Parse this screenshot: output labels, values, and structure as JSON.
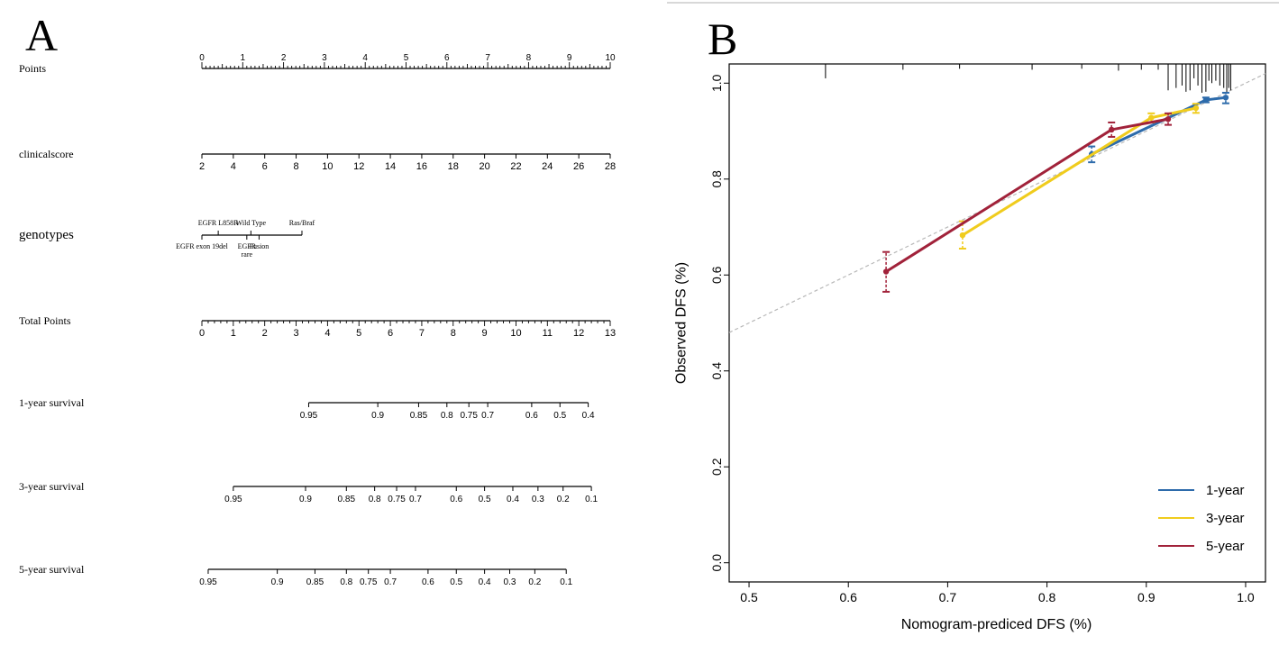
{
  "panel_a": {
    "letter": "A",
    "rows": [
      {
        "label": "Points"
      },
      {
        "label": "clinicalscore"
      },
      {
        "label": "genotypes"
      },
      {
        "label": "Total Points"
      },
      {
        "label": "1-year survival"
      },
      {
        "label": "3-year survival"
      },
      {
        "label": "5-year survival"
      }
    ]
  },
  "panel_b": {
    "letter": "B"
  },
  "chart_data": [
    {
      "type": "nomogram",
      "scales": [
        {
          "name": "Points",
          "min": 0,
          "max": 10,
          "major_ticks": [
            0,
            1,
            2,
            3,
            4,
            5,
            6,
            7,
            8,
            9,
            10
          ],
          "minor_step": 0.1
        },
        {
          "name": "clinicalscore",
          "min": 2,
          "max": 28,
          "ticks": [
            2,
            4,
            6,
            8,
            10,
            12,
            14,
            16,
            18,
            20,
            22,
            24,
            26,
            28
          ],
          "points_at_min": 0,
          "points_at_max": 10
        },
        {
          "name": "genotypes",
          "categories": [
            {
              "label": "EGFR exon 19del",
              "points": 0,
              "label_side": "below"
            },
            {
              "label": "EGFR L858R",
              "points": 0.4,
              "label_side": "above"
            },
            {
              "label": "EGFR rare",
              "points": 1.1,
              "label_side": "below"
            },
            {
              "label": "Wild Type",
              "points": 1.2,
              "label_side": "above"
            },
            {
              "label": "Fusion",
              "points": 1.4,
              "label_side": "below"
            },
            {
              "label": "Ras/Braf",
              "points": 2.45,
              "label_side": "above"
            }
          ]
        },
        {
          "name": "Total Points",
          "min": 0,
          "max": 13,
          "major_ticks": [
            0,
            1,
            2,
            3,
            4,
            5,
            6,
            7,
            8,
            9,
            10,
            11,
            12,
            13
          ],
          "minor_step": 0.2
        },
        {
          "name": "1-year survival",
          "ticks": [
            {
              "label": "0.95",
              "total_points": 3.4
            },
            {
              "label": "0.9",
              "total_points": 5.6
            },
            {
              "label": "0.85",
              "total_points": 6.9
            },
            {
              "label": "0.8",
              "total_points": 7.8
            },
            {
              "label": "0.75",
              "total_points": 8.5
            },
            {
              "label": "0.7",
              "total_points": 9.1
            },
            {
              "label": "0.6",
              "total_points": 10.5
            },
            {
              "label": "0.5",
              "total_points": 11.4
            },
            {
              "label": "0.4",
              "total_points": 12.3
            }
          ]
        },
        {
          "name": "3-year survival",
          "ticks": [
            {
              "label": "0.95",
              "total_points": 1.0
            },
            {
              "label": "0.9",
              "total_points": 3.3
            },
            {
              "label": "0.85",
              "total_points": 4.6
            },
            {
              "label": "0.8",
              "total_points": 5.5
            },
            {
              "label": "0.75",
              "total_points": 6.2
            },
            {
              "label": "0.7",
              "total_points": 6.8
            },
            {
              "label": "0.6",
              "total_points": 8.1
            },
            {
              "label": "0.5",
              "total_points": 9.0
            },
            {
              "label": "0.4",
              "total_points": 9.9
            },
            {
              "label": "0.3",
              "total_points": 10.7
            },
            {
              "label": "0.2",
              "total_points": 11.5
            },
            {
              "label": "0.1",
              "total_points": 12.4
            }
          ]
        },
        {
          "name": "5-year survival",
          "ticks": [
            {
              "label": "0.95",
              "total_points": 0.2
            },
            {
              "label": "0.9",
              "total_points": 2.4
            },
            {
              "label": "0.85",
              "total_points": 3.6
            },
            {
              "label": "0.8",
              "total_points": 4.6
            },
            {
              "label": "0.75",
              "total_points": 5.3
            },
            {
              "label": "0.7",
              "total_points": 6.0
            },
            {
              "label": "0.6",
              "total_points": 7.2
            },
            {
              "label": "0.5",
              "total_points": 8.1
            },
            {
              "label": "0.4",
              "total_points": 9.0
            },
            {
              "label": "0.3",
              "total_points": 9.8
            },
            {
              "label": "0.2",
              "total_points": 10.6
            },
            {
              "label": "0.1",
              "total_points": 11.6
            }
          ]
        }
      ]
    },
    {
      "type": "line",
      "xlabel": "Nomogram-prediced DFS (%)",
      "ylabel": "Observed DFS (%)",
      "xlim": [
        0.48,
        1.02
      ],
      "ylim": [
        -0.04,
        1.04
      ],
      "xticks": [
        0.5,
        0.6,
        0.7,
        0.8,
        0.9,
        1.0
      ],
      "xtick_labels": [
        "0.5",
        "0.6",
        "0.7",
        "0.8",
        "0.9",
        "1.0"
      ],
      "yticks": [
        0.0,
        0.2,
        0.4,
        0.6,
        0.8,
        1.0
      ],
      "ytick_labels": [
        "0.0",
        "0.2",
        "0.4",
        "0.6",
        "0.8",
        "1.0"
      ],
      "reference_line": {
        "style": "dashed",
        "color": "#b8b8b8",
        "from": [
          0.48,
          0.48
        ],
        "to": [
          1.02,
          1.02
        ]
      },
      "legend": {
        "placement": "bottom-right"
      },
      "series": [
        {
          "name": "1-year",
          "color": "#2d6bab",
          "x": [
            0.845,
            0.96,
            0.98
          ],
          "y": [
            0.852,
            0.965,
            0.97
          ],
          "err_low": [
            0.835,
            0.96,
            0.958
          ],
          "err_high": [
            0.868,
            0.97,
            0.98
          ]
        },
        {
          "name": "3-year",
          "color": "#f0cc1d",
          "x": [
            0.715,
            0.905,
            0.95
          ],
          "y": [
            0.683,
            0.928,
            0.948
          ],
          "err_low": [
            0.655,
            0.918,
            0.938
          ],
          "err_high": [
            0.712,
            0.937,
            0.957
          ]
        },
        {
          "name": "5-year",
          "color": "#a1223a",
          "x": [
            0.638,
            0.865,
            0.922
          ],
          "y": [
            0.607,
            0.903,
            0.925
          ],
          "err_low": [
            0.565,
            0.888,
            0.913
          ],
          "err_high": [
            0.648,
            0.918,
            0.937
          ]
        }
      ],
      "rug_x": [
        0.577,
        0.655,
        0.712,
        0.785,
        0.835,
        0.872,
        0.895,
        0.912,
        0.922,
        0.93,
        0.936,
        0.94,
        0.944,
        0.948,
        0.952,
        0.956,
        0.96,
        0.963,
        0.966,
        0.97,
        0.974,
        0.978,
        0.981,
        0.983,
        0.985
      ],
      "rug_heights": [
        0.03,
        0.012,
        0.01,
        0.012,
        0.01,
        0.014,
        0.012,
        0.012,
        0.055,
        0.05,
        0.045,
        0.058,
        0.055,
        0.03,
        0.045,
        0.06,
        0.058,
        0.035,
        0.04,
        0.035,
        0.045,
        0.05,
        0.06,
        0.05,
        0.055
      ]
    }
  ]
}
